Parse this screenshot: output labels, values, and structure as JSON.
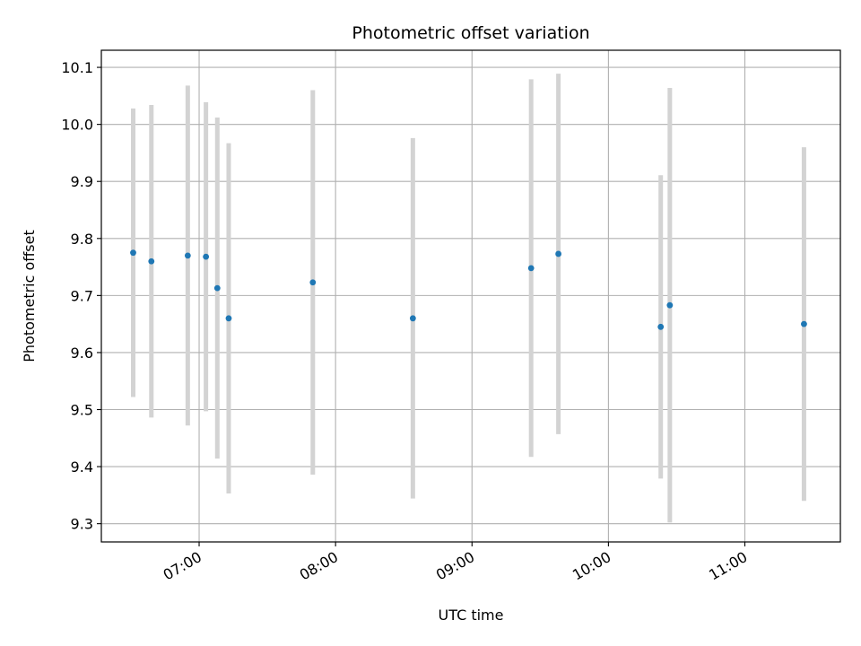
{
  "chart_data": {
    "type": "scatter",
    "title": "Photometric offset variation",
    "xlabel": "UTC time",
    "ylabel": "Photometric offset",
    "x_ticks": [
      "07:00",
      "08:00",
      "09:00",
      "10:00",
      "11:00"
    ],
    "y_ticks": [
      "9.3",
      "9.4",
      "9.5",
      "9.6",
      "9.7",
      "9.8",
      "9.9",
      "10.0",
      "10.1"
    ],
    "xlim": [
      "06:17",
      "11:42"
    ],
    "ylim": [
      9.268,
      10.13
    ],
    "grid": true,
    "colors": {
      "point": "#1f77b4",
      "errorbar": "#d3d3d3",
      "grid": "#b0b0b0"
    },
    "points": [
      {
        "time": "06:31",
        "y": 9.775,
        "err": 0.253
      },
      {
        "time": "06:39",
        "y": 9.76,
        "err": 0.274
      },
      {
        "time": "06:55",
        "y": 9.77,
        "err": 0.298
      },
      {
        "time": "07:03",
        "y": 9.768,
        "err": 0.271
      },
      {
        "time": "07:08",
        "y": 9.713,
        "err": 0.299
      },
      {
        "time": "07:13",
        "y": 9.66,
        "err": 0.307
      },
      {
        "time": "07:50",
        "y": 9.723,
        "err": 0.337
      },
      {
        "time": "08:34",
        "y": 9.66,
        "err": 0.316
      },
      {
        "time": "09:26",
        "y": 9.748,
        "err": 0.331
      },
      {
        "time": "09:38",
        "y": 9.773,
        "err": 0.316
      },
      {
        "time": "10:23",
        "y": 9.645,
        "err": 0.266
      },
      {
        "time": "10:27",
        "y": 9.683,
        "err": 0.381
      },
      {
        "time": "11:26",
        "y": 9.65,
        "err": 0.31
      }
    ]
  }
}
